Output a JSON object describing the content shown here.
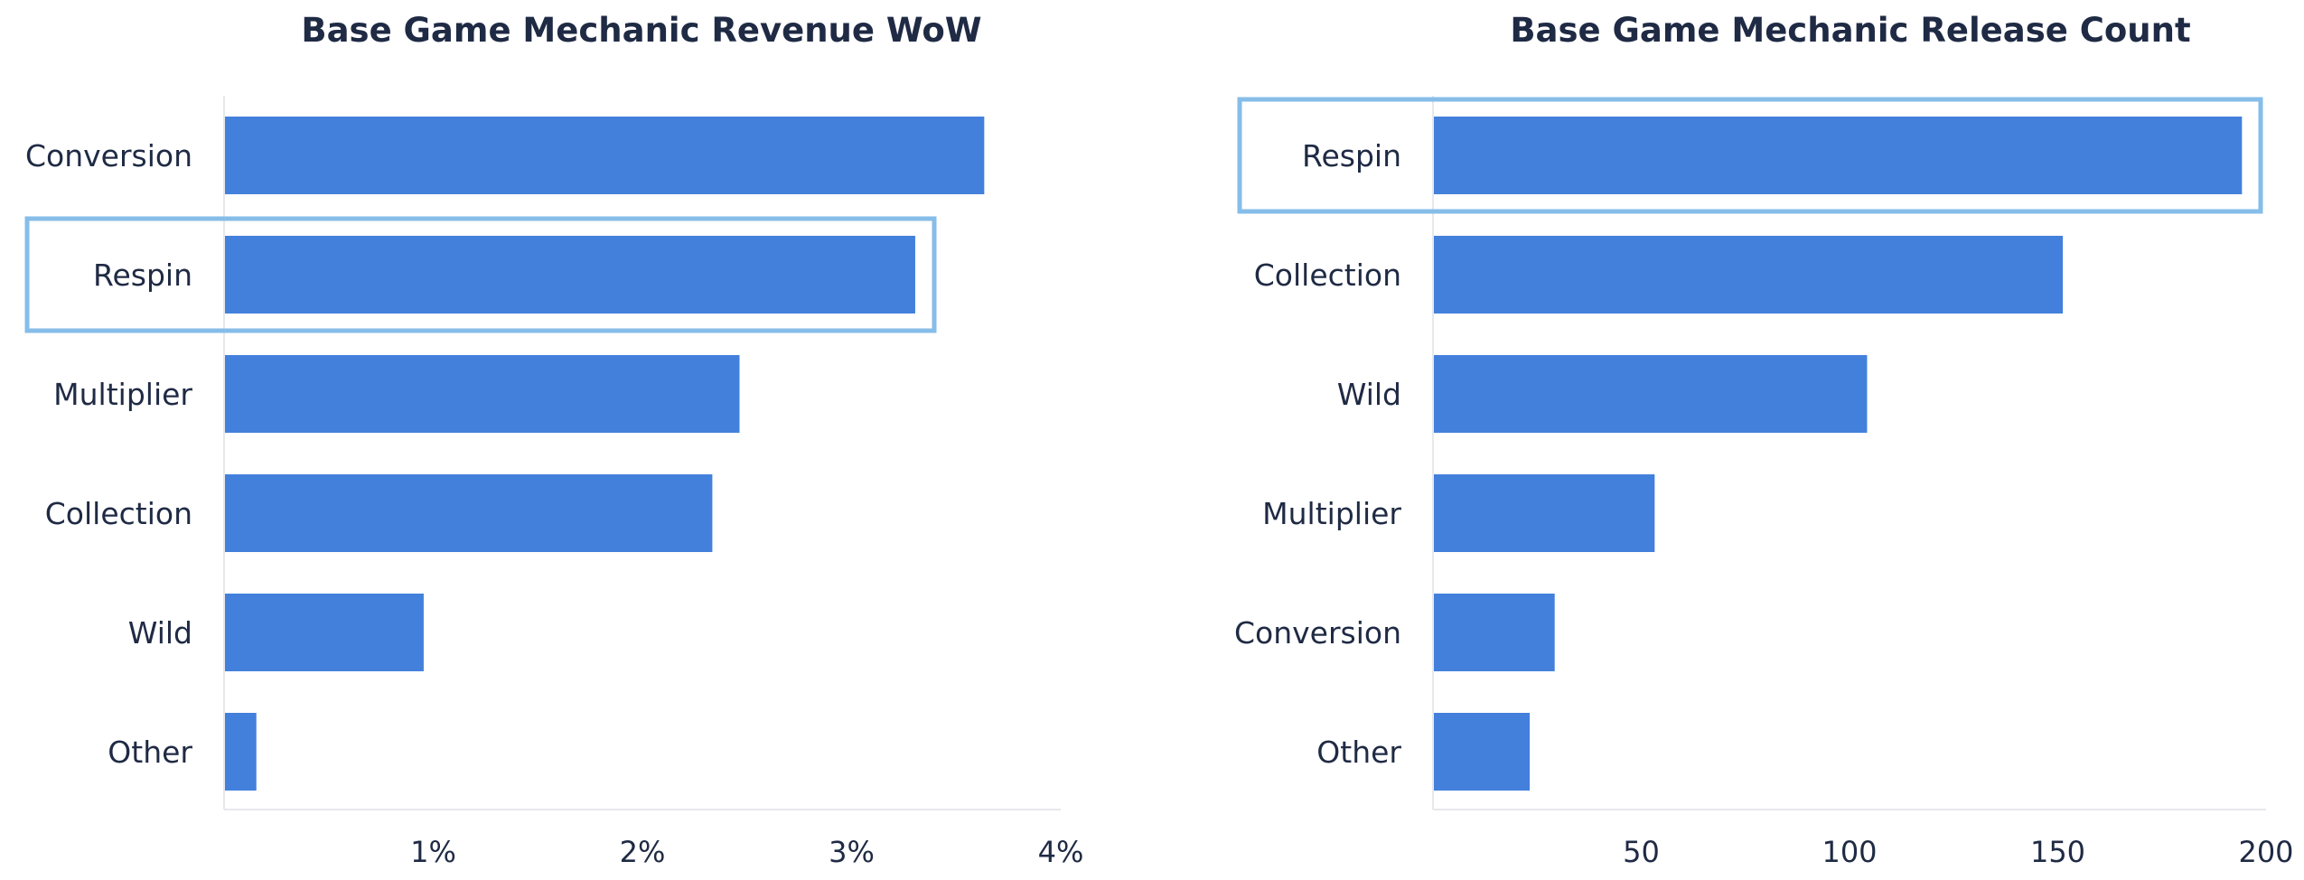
{
  "colors": {
    "bar": "#4380dc",
    "highlight": "#86bde9",
    "axis": "#e6e8ec",
    "text": "#1f2a44"
  },
  "chart_data": [
    {
      "type": "bar",
      "orientation": "horizontal",
      "title": "Base Game Mechanic Revenue WoW",
      "categories": [
        "Conversion",
        "Respin",
        "Multiplier",
        "Collection",
        "Wild",
        "Other"
      ],
      "values": [
        3.63,
        3.3,
        2.46,
        2.33,
        0.95,
        0.15
      ],
      "xlim": [
        0,
        4
      ],
      "ticks": [
        1,
        2,
        3,
        4
      ],
      "tick_labels": [
        "1%",
        "2%",
        "3%",
        "4%"
      ],
      "highlighted_category": "Respin",
      "grid": false
    },
    {
      "type": "bar",
      "orientation": "horizontal",
      "title": "Base Game Mechanic Release Count",
      "categories": [
        "Respin",
        "Collection",
        "Wild",
        "Multiplier",
        "Conversion",
        "Other"
      ],
      "values": [
        194,
        151,
        104,
        53,
        29,
        23
      ],
      "xlim": [
        0,
        200
      ],
      "ticks": [
        50,
        100,
        150,
        200
      ],
      "tick_labels": [
        "50",
        "100",
        "150",
        "200"
      ],
      "highlighted_category": "Respin",
      "grid": false
    }
  ]
}
